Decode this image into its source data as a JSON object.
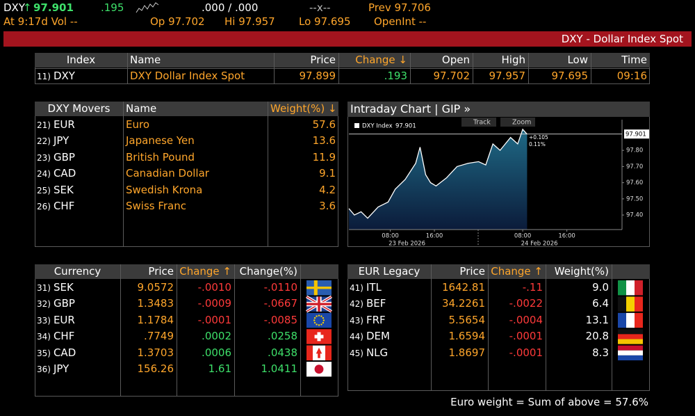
{
  "header": {
    "ticker": "DXY",
    "arrow": "↑",
    "last": "97.901",
    "change": ".195",
    "bid_ask": ".000 / .000",
    "size": "--x--",
    "prev": "Prev 97.706",
    "time_vol": "At 9:17d Vol --",
    "open": "Op 97.702",
    "high": "Hi 97.957",
    "low": "Lo 97.695",
    "open_int": "OpenInt --"
  },
  "banner": "DXY - Dollar Index Spot",
  "index_table": {
    "headers": [
      "Index",
      "Name",
      "Price",
      "Change ↓",
      "Open",
      "High",
      "Low",
      "Time"
    ],
    "rows": [
      [
        "11)",
        "DXY",
        "DXY Dollar Index Spot",
        "97.899",
        ".193",
        "97.702",
        "97.957",
        "97.695",
        "09:16"
      ]
    ]
  },
  "movers": {
    "headers": [
      "DXY Movers",
      "Name",
      "Weight(%) ↓"
    ],
    "rows": [
      [
        "21)",
        "EUR",
        "Euro",
        "57.6"
      ],
      [
        "22)",
        "JPY",
        "Japanese Yen",
        "13.6"
      ],
      [
        "23)",
        "GBP",
        "British Pound",
        "11.9"
      ],
      [
        "24)",
        "CAD",
        "Canadian Dollar",
        "9.1"
      ],
      [
        "25)",
        "SEK",
        "Swedish Krona",
        "4.2"
      ],
      [
        "26)",
        "CHF",
        "Swiss Franc",
        "3.6"
      ]
    ]
  },
  "currency": {
    "headers": [
      "Currency",
      "Price",
      "Change ↑",
      "Change(%)"
    ],
    "rows": [
      [
        "31)",
        "SEK",
        "9.0572",
        "-.0010",
        "-.0110"
      ],
      [
        "32)",
        "GBP",
        "1.3483",
        "-.0009",
        "-.0667"
      ],
      [
        "33)",
        "EUR",
        "1.1784",
        "-.0001",
        "-.0085"
      ],
      [
        "34)",
        "CHF",
        ".7749",
        ".0002",
        ".0258"
      ],
      [
        "35)",
        "CAD",
        "1.3703",
        ".0006",
        ".0438"
      ],
      [
        "36)",
        "JPY",
        "156.26",
        "1.61",
        "1.0411"
      ]
    ]
  },
  "eur_legacy": {
    "headers": [
      "EUR Legacy",
      "Price",
      "Change ↑",
      "Weight(%)"
    ],
    "rows": [
      [
        "41)",
        "ITL",
        "1642.81",
        "-.11",
        "9.0"
      ],
      [
        "42)",
        "BEF",
        "34.2261",
        "-.0022",
        "6.4"
      ],
      [
        "43)",
        "FRF",
        "5.5654",
        "-.0004",
        "13.1"
      ],
      [
        "44)",
        "DEM",
        "1.6594",
        "-.0001",
        "20.8"
      ],
      [
        "45)",
        "NLG",
        "1.8697",
        "-.0001",
        "8.3"
      ]
    ],
    "footer": "Euro weight = Sum of above = 57.6%"
  },
  "chart_data": {
    "type": "line",
    "title": "Intraday Chart | GIP »",
    "buttons": [
      "Track",
      "Zoom"
    ],
    "last_value": 97.901,
    "annotations": [
      "+0.105",
      "0.11%"
    ],
    "x": [
      0.5,
      1.5,
      2.7,
      3.9,
      5.8,
      7.6,
      8.9,
      10.7,
      12.6,
      13.4,
      14.4,
      15.3,
      16.3,
      18.2,
      20.1,
      22.1,
      24.0,
      25.3,
      26.6,
      27.9,
      29.8,
      31.1,
      32.0,
      32.8
    ],
    "series": [
      {
        "name": "DXY Index",
        "color": "#ffffff",
        "values": [
          97.44,
          97.4,
          97.42,
          97.38,
          97.45,
          97.48,
          97.56,
          97.62,
          97.72,
          97.82,
          97.65,
          97.6,
          97.58,
          97.63,
          97.7,
          97.72,
          97.73,
          97.71,
          97.84,
          97.8,
          97.88,
          97.84,
          97.93,
          97.9
        ]
      }
    ],
    "xlim": [
      0.5,
      50
    ],
    "xticks": [
      {
        "value": 8,
        "label": "08:00"
      },
      {
        "value": 16,
        "label": "16:00"
      },
      {
        "value": 32,
        "label": "08:00"
      },
      {
        "value": 40,
        "label": "16:00"
      }
    ],
    "date_labels": [
      "23 Feb 2026",
      "24 Feb 2026"
    ],
    "ylim": [
      97.31,
      97.99
    ],
    "yticks": [
      {
        "value": 97.4,
        "label": "97.40"
      },
      {
        "value": 97.5,
        "label": "97.50"
      },
      {
        "value": 97.6,
        "label": "97.60"
      },
      {
        "value": 97.7,
        "label": "97.70"
      },
      {
        "value": 97.8,
        "label": "97.80"
      }
    ]
  }
}
